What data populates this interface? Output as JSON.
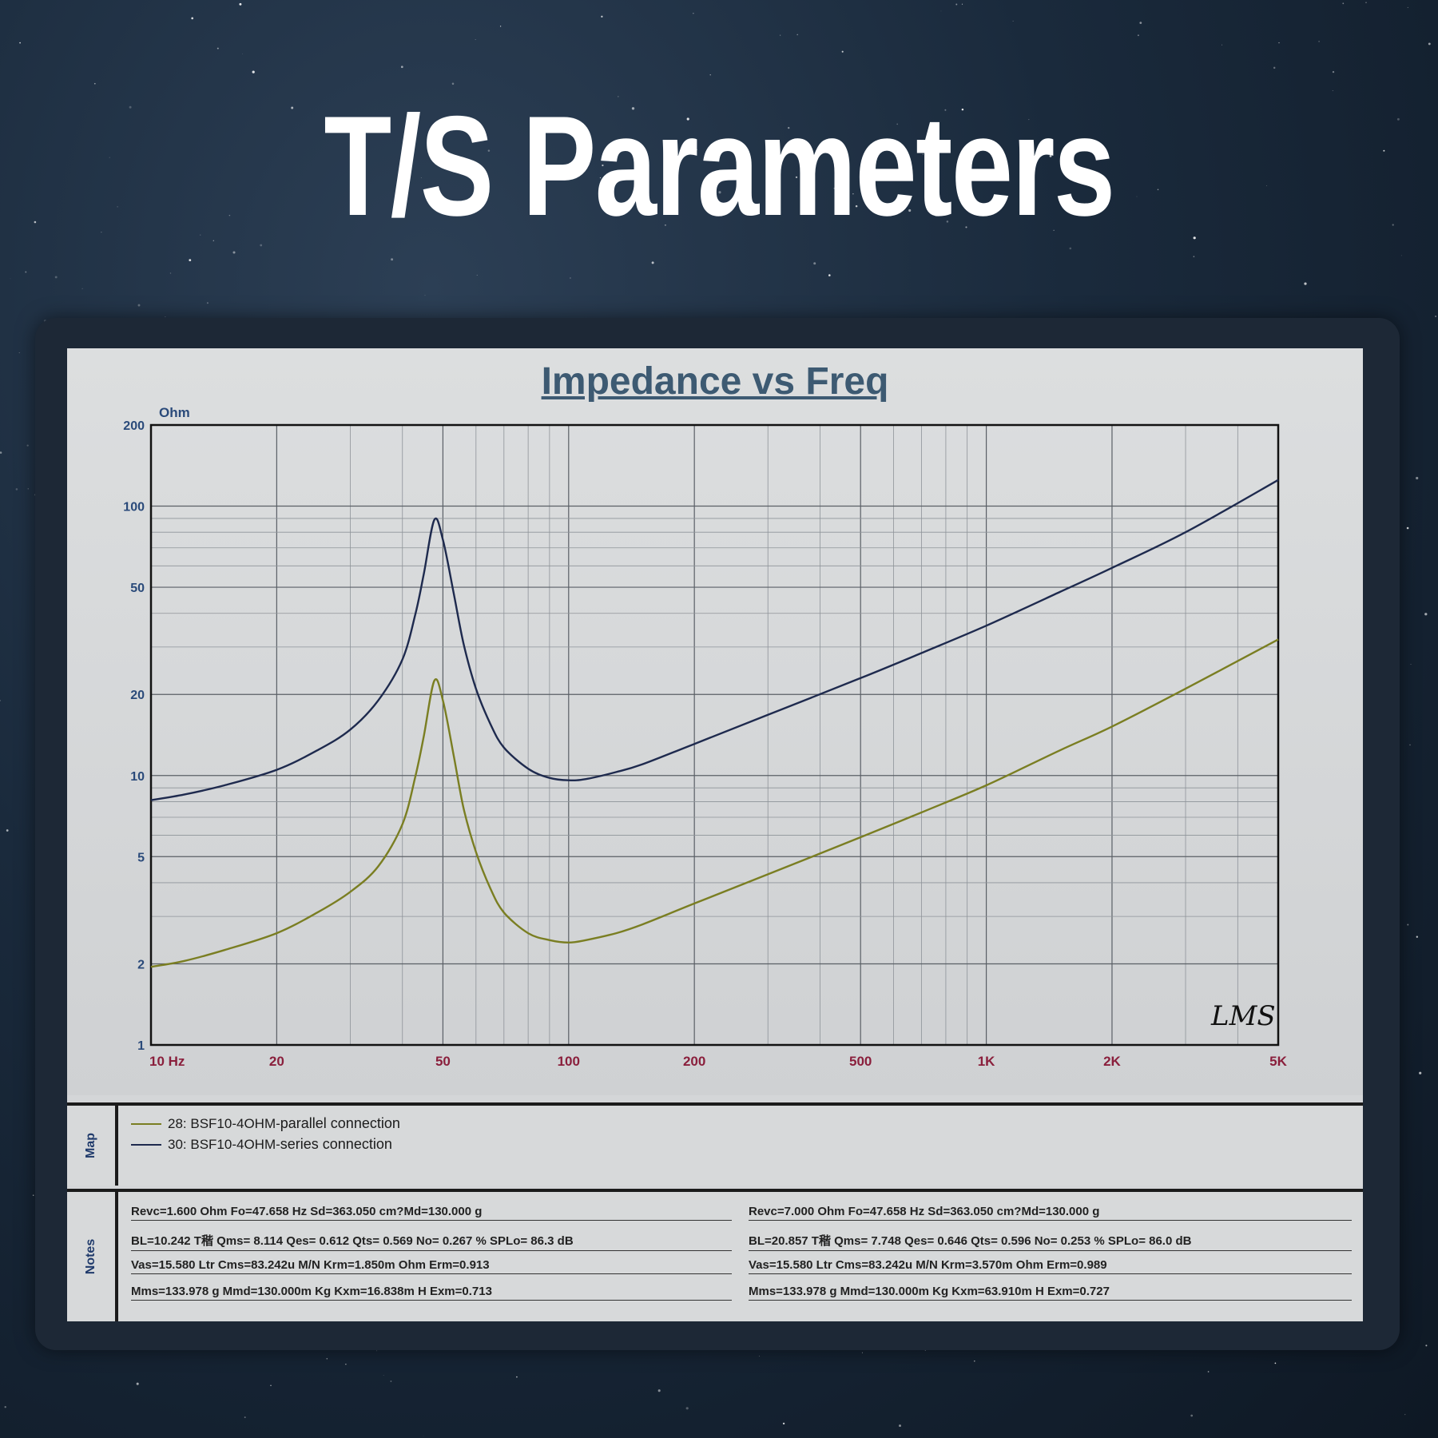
{
  "headline": "T/S Parameters",
  "chart_data": {
    "type": "line",
    "title": "Impedance vs Freq",
    "ylabel": "Ohm",
    "xlabel": "",
    "x_scale": "log",
    "y_scale": "log",
    "xlim": [
      10,
      5000
    ],
    "ylim": [
      1,
      200
    ],
    "x_ticks": [
      {
        "value": 10,
        "label": "10  Hz"
      },
      {
        "value": 20,
        "label": "20"
      },
      {
        "value": 50,
        "label": "50"
      },
      {
        "value": 100,
        "label": "100"
      },
      {
        "value": 200,
        "label": "200"
      },
      {
        "value": 500,
        "label": "500"
      },
      {
        "value": 1000,
        "label": "1K"
      },
      {
        "value": 2000,
        "label": "2K"
      },
      {
        "value": 5000,
        "label": "5K"
      }
    ],
    "y_ticks": [
      {
        "value": 200,
        "label": "200"
      },
      {
        "value": 100,
        "label": "100"
      },
      {
        "value": 50,
        "label": "50"
      },
      {
        "value": 20,
        "label": "20"
      },
      {
        "value": 10,
        "label": "10"
      },
      {
        "value": 5,
        "label": "5"
      },
      {
        "value": 2,
        "label": "2"
      },
      {
        "value": 1,
        "label": "1"
      }
    ],
    "grid": true,
    "watermark": "LMS",
    "series": [
      {
        "name": "28: BSF10-4OHM-parallel connection",
        "color": "#7a7e22",
        "points": [
          [
            10,
            1.95
          ],
          [
            12,
            2.05
          ],
          [
            15,
            2.25
          ],
          [
            20,
            2.6
          ],
          [
            25,
            3.1
          ],
          [
            30,
            3.7
          ],
          [
            35,
            4.6
          ],
          [
            40,
            6.6
          ],
          [
            43,
            10
          ],
          [
            45,
            14
          ],
          [
            47.7,
            22.5
          ],
          [
            50,
            19
          ],
          [
            53,
            12
          ],
          [
            56,
            7.6
          ],
          [
            60,
            5.2
          ],
          [
            65,
            3.8
          ],
          [
            70,
            3.1
          ],
          [
            80,
            2.6
          ],
          [
            90,
            2.45
          ],
          [
            100,
            2.4
          ],
          [
            110,
            2.45
          ],
          [
            130,
            2.6
          ],
          [
            150,
            2.8
          ],
          [
            200,
            3.35
          ],
          [
            300,
            4.3
          ],
          [
            500,
            5.9
          ],
          [
            700,
            7.3
          ],
          [
            1000,
            9.2
          ],
          [
            1500,
            12.4
          ],
          [
            2000,
            15.2
          ],
          [
            3000,
            21
          ],
          [
            5000,
            32
          ]
        ]
      },
      {
        "name": "30: BSF10-4OHM-series connection",
        "color": "#1e2a4e",
        "points": [
          [
            10,
            8.1
          ],
          [
            12,
            8.5
          ],
          [
            15,
            9.2
          ],
          [
            20,
            10.5
          ],
          [
            25,
            12.4
          ],
          [
            30,
            14.8
          ],
          [
            35,
            19
          ],
          [
            40,
            27
          ],
          [
            43,
            40
          ],
          [
            45,
            56
          ],
          [
            47.7,
            89
          ],
          [
            50,
            75
          ],
          [
            53,
            48
          ],
          [
            56,
            31
          ],
          [
            60,
            21
          ],
          [
            65,
            15.5
          ],
          [
            70,
            12.7
          ],
          [
            80,
            10.6
          ],
          [
            90,
            9.8
          ],
          [
            100,
            9.6
          ],
          [
            110,
            9.7
          ],
          [
            130,
            10.3
          ],
          [
            150,
            11
          ],
          [
            200,
            13.1
          ],
          [
            300,
            16.8
          ],
          [
            500,
            23
          ],
          [
            700,
            28.5
          ],
          [
            1000,
            36
          ],
          [
            1500,
            48
          ],
          [
            2000,
            59
          ],
          [
            3000,
            80
          ],
          [
            5000,
            125
          ]
        ]
      }
    ]
  },
  "map": {
    "label": "Map",
    "entries": [
      {
        "id": "28: BSF10-4OHM-",
        "desc": "parallel connection",
        "color": "#7a7e22"
      },
      {
        "id": "30: BSF10-4OHM-",
        "desc": "series connection",
        "color": "#1e2a4e"
      }
    ]
  },
  "notes": {
    "label": "Notes",
    "left": [
      "Revc=1.600 Ohm  Fo=47.658 Hz  Sd=363.050 cm?Md=130.000 g",
      "BL=10.242 T稭  Qms= 8.114  Qes= 0.612  Qts= 0.569  No= 0.267 %  SPLo= 86.3 dB",
      "Vas=15.580 Ltr  Cms=83.242u M/N  Krm=1.850m Ohm  Erm=0.913",
      "Mms=133.978 g  Mmd=130.000m Kg  Kxm=16.838m H  Exm=0.713"
    ],
    "right": [
      "Revc=7.000 Ohm  Fo=47.658 Hz  Sd=363.050 cm?Md=130.000 g",
      "BL=20.857 T稭  Qms= 7.748  Qes= 0.646  Qts= 0.596  No= 0.253 %  SPLo= 86.0 dB",
      "Vas=15.580 Ltr  Cms=83.242u M/N  Krm=3.570m Ohm  Erm=0.989",
      "Mms=133.978 g  Mmd=130.000m Kg  Kxm=63.910m H  Exm=0.727"
    ]
  }
}
